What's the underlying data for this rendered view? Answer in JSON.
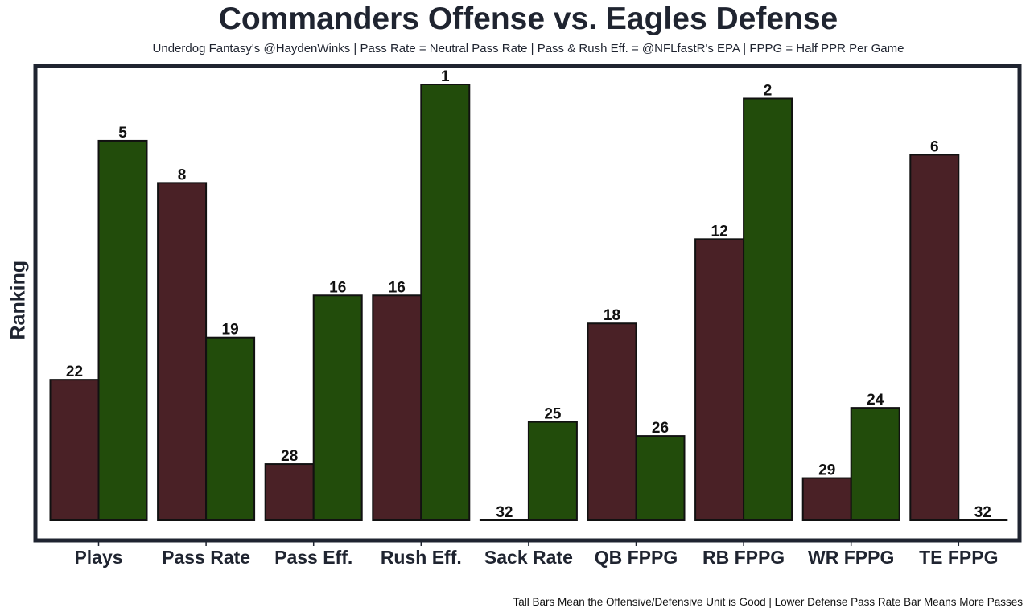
{
  "chart_data": {
    "type": "bar",
    "title": "Commanders Offense vs. Eagles Defense",
    "subtitle": "Underdog Fantasy's @HaydenWinks | Pass Rate = Neutral Pass Rate | Pass & Rush Eff. = @NFLfastR's EPA | FPPG = Half PPR Per Game",
    "footer": "Tall Bars Mean the Offensive/Defensive Unit is Good | Lower Defense Pass Rate Bar Means More Passes",
    "xlabel": "",
    "ylabel": "Ranking",
    "categories": [
      "Plays",
      "Pass Rate",
      "Pass Eff.",
      "Rush Eff.",
      "Sack Rate",
      "QB FPPG",
      "RB FPPG",
      "WR FPPG",
      "TE FPPG"
    ],
    "series": [
      {
        "name": "Commanders Offense",
        "color": "#4a2126",
        "values": [
          22,
          8,
          28,
          16,
          32,
          18,
          12,
          29,
          6
        ]
      },
      {
        "name": "Eagles Defense",
        "color": "#224c0b",
        "values": [
          5,
          19,
          16,
          1,
          25,
          26,
          2,
          24,
          32
        ]
      }
    ],
    "value_scale": "bar height = 32 - rank (rank 1 tallest)",
    "ylim": [
      0,
      31
    ],
    "grid": false,
    "legend": "none"
  }
}
